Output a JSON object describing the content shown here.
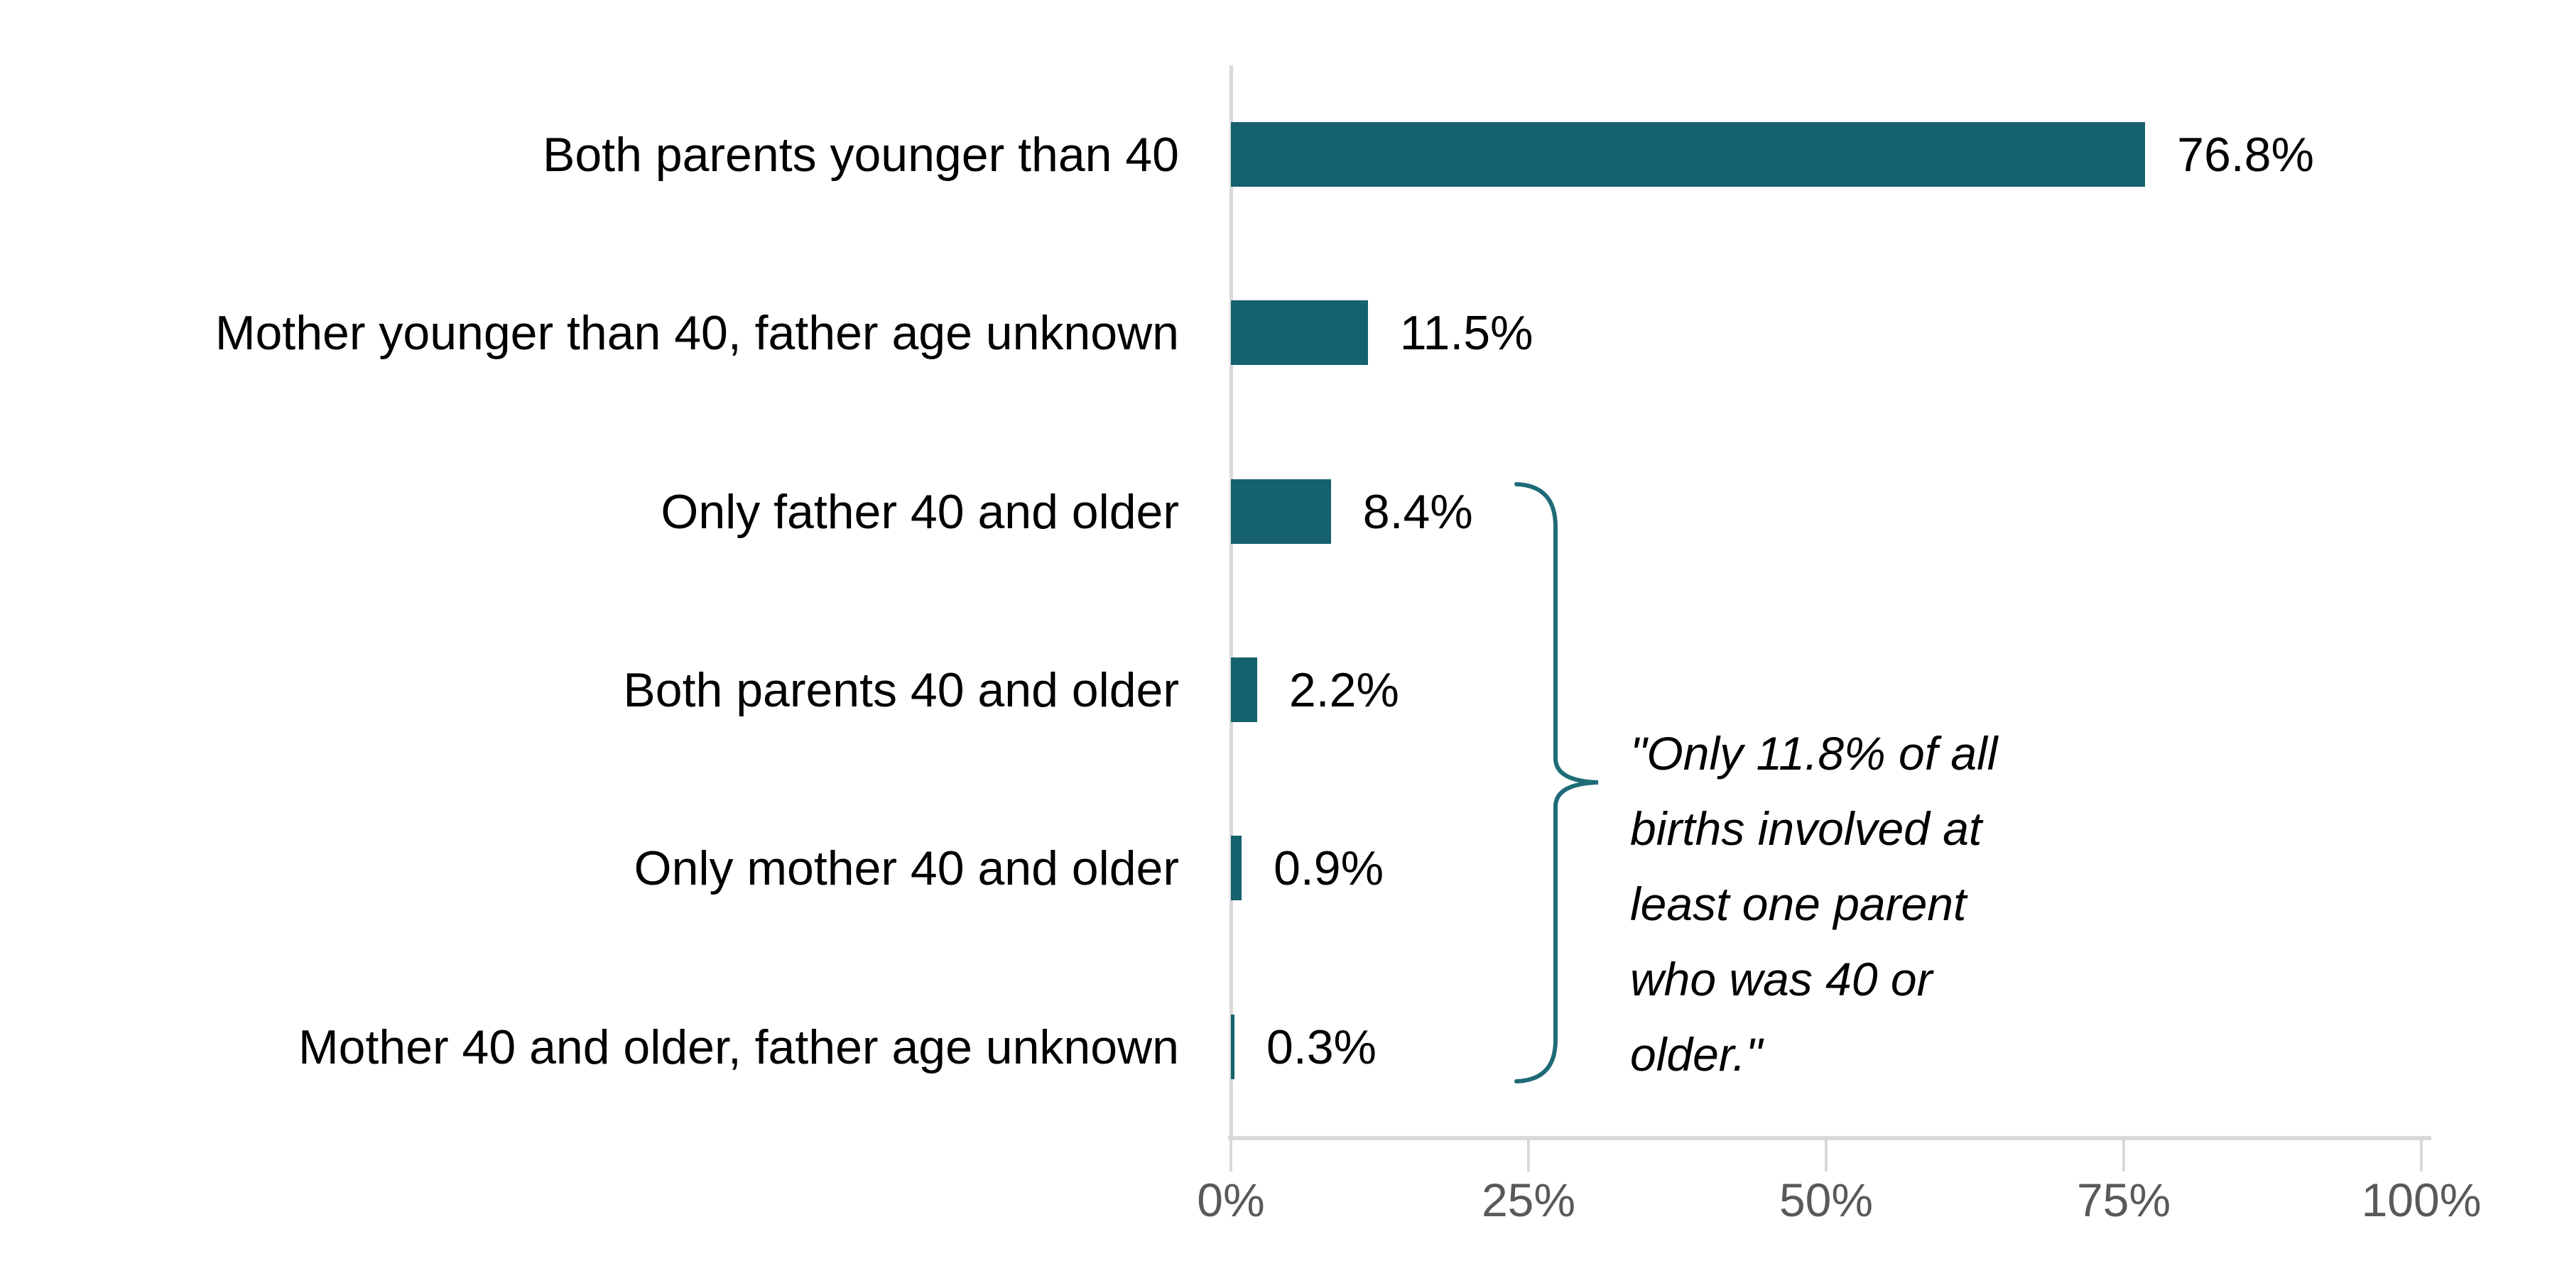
{
  "chart_data": {
    "type": "bar",
    "orientation": "horizontal",
    "title": "",
    "xlabel": "",
    "ylabel": "",
    "xlim": [
      0,
      100
    ],
    "grid": false,
    "legend": false,
    "categories": [
      "Both parents younger than 40",
      "Mother younger than 40, father age unknown",
      "Only father 40 and older",
      "Both parents 40 and older",
      "Only mother 40 and older",
      "Mother 40 and older, father age unknown"
    ],
    "values": [
      76.8,
      11.5,
      8.4,
      2.2,
      0.9,
      0.3
    ],
    "value_labels": [
      "76.8%",
      "11.5%",
      "8.4%",
      "2.2%",
      "0.9%",
      "0.3%"
    ],
    "x_ticks": [
      "0%",
      "25%",
      "50%",
      "75%",
      "100%"
    ],
    "colors": {
      "bar": "#16616E",
      "axis_line": "#D9D9D9",
      "tick_label": "#595959",
      "category_label": "#000000",
      "value_label": "#000000",
      "brace": "#1F6B78",
      "annotation_text": "#000000"
    },
    "annotation": {
      "text": "\"Only 11.8% of all births involved at least one parent who was 40 or older.\"",
      "lines": [
        "\"Only 11.8% of all",
        "births involved at",
        "least one parent",
        "who was 40 or",
        "older.\""
      ],
      "brace_rows_covered": [
        "Only father 40 and older",
        "Both parents 40 and older",
        "Only mother 40 and older",
        "Mother 40 and older, father age unknown"
      ]
    }
  }
}
